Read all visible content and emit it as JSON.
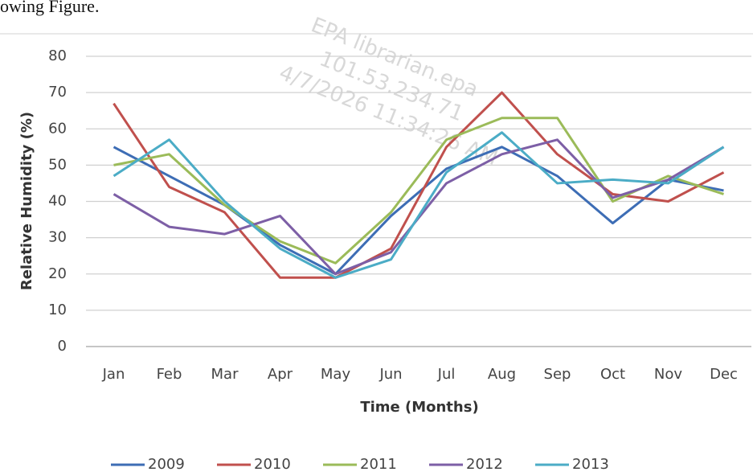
{
  "page_fragment": "owing Figure.",
  "watermark": [
    "EPA librarian.epa",
    "101.53.234.71",
    "4/7/2026 11:34:26 AM"
  ],
  "chart_data": {
    "type": "line",
    "xlabel": "Time (Months)",
    "ylabel": "Relative Humidity (%)",
    "categories": [
      "Jan",
      "Feb",
      "Mar",
      "Apr",
      "May",
      "Jun",
      "Jul",
      "Aug",
      "Sep",
      "Oct",
      "Nov",
      "Dec"
    ],
    "series": [
      {
        "name": "2009",
        "color": "#3d6db5",
        "values": [
          55,
          47,
          39,
          28,
          20,
          36,
          49,
          55,
          47,
          34,
          46,
          43
        ]
      },
      {
        "name": "2010",
        "color": "#c0504d",
        "values": [
          67,
          44,
          37,
          19,
          19,
          27,
          55,
          70,
          53,
          42,
          40,
          48
        ]
      },
      {
        "name": "2011",
        "color": "#9bbb59",
        "values": [
          50,
          53,
          39,
          29,
          23,
          37,
          57,
          63,
          63,
          40,
          47,
          42
        ]
      },
      {
        "name": "2012",
        "color": "#7d5fa6",
        "values": [
          42,
          33,
          31,
          36,
          20,
          26,
          45,
          53,
          57,
          41,
          46,
          55
        ]
      },
      {
        "name": "2013",
        "color": "#4bacc6",
        "values": [
          47,
          57,
          40,
          27,
          19,
          24,
          48,
          59,
          45,
          46,
          45,
          55
        ]
      }
    ],
    "ylim": [
      0,
      80
    ],
    "yticks": [
      0,
      10,
      20,
      30,
      40,
      50,
      60,
      70,
      80
    ],
    "grid": true,
    "legend": "bottom"
  }
}
